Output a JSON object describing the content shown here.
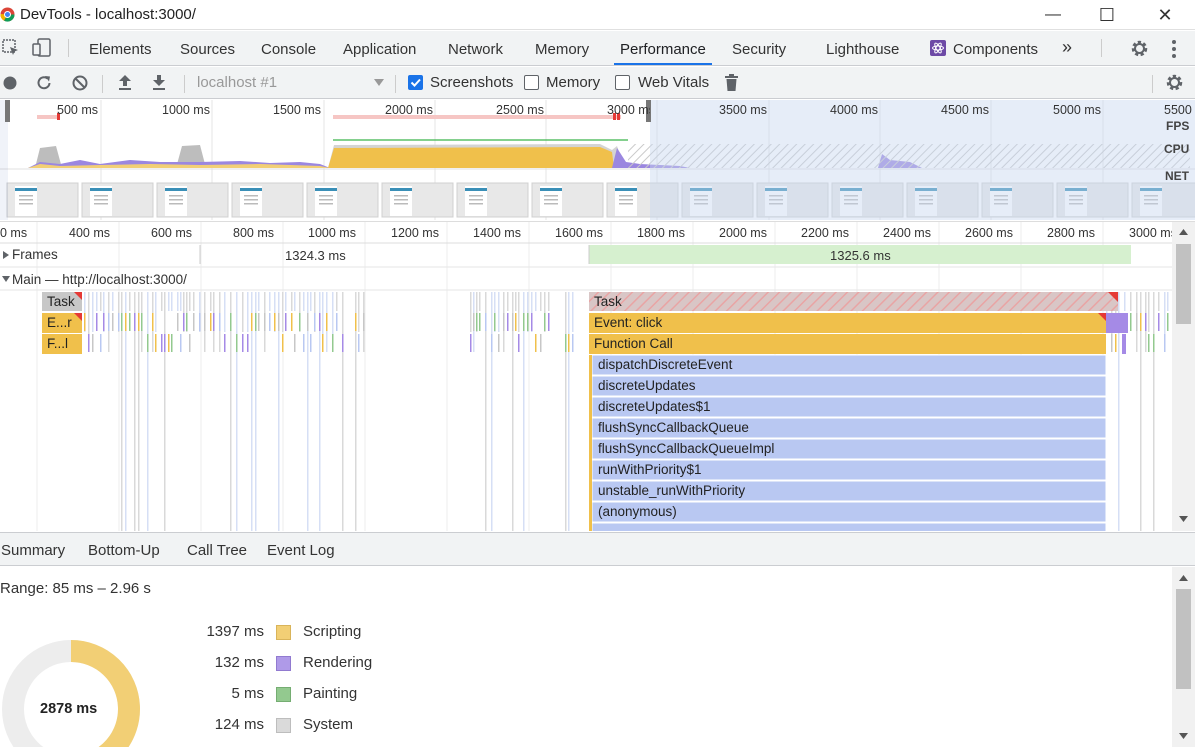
{
  "window": {
    "title": "DevTools - localhost:3000/",
    "minimize_glyph": "—",
    "maximize_glyph": "☐",
    "close_glyph": "✕"
  },
  "tabs": {
    "items": [
      "Elements",
      "Sources",
      "Console",
      "Application",
      "Network",
      "Memory",
      "Performance",
      "Security",
      "Lighthouse",
      "Components"
    ],
    "active": "Performance",
    "more_glyph": "»"
  },
  "toolbar": {
    "recording_select": "localhost #1",
    "screenshots_label": "Screenshots",
    "screenshots_checked": true,
    "memory_label": "Memory",
    "memory_checked": false,
    "webvitals_label": "Web Vitals",
    "webvitals_checked": false
  },
  "overview": {
    "ticks": [
      "500 ms",
      "1000 ms",
      "1500 ms",
      "2000 ms",
      "2500 ms",
      "3000 ms",
      "3500 ms",
      "4000 ms",
      "4500 ms",
      "5000 ms",
      "5500"
    ],
    "lane_labels": {
      "fps": "FPS",
      "cpu": "CPU",
      "net": "NET"
    },
    "selection": {
      "start_ms": 85,
      "end_ms": 2960
    }
  },
  "flame": {
    "ticks": [
      "0 ms",
      "400 ms",
      "600 ms",
      "800 ms",
      "1000 ms",
      "1200 ms",
      "1400 ms",
      "1600 ms",
      "1800 ms",
      "2000 ms",
      "2200 ms",
      "2400 ms",
      "2600 ms",
      "2800 ms",
      "3000 ms"
    ],
    "frames_label": "Frames",
    "frames": [
      "1324.3 ms",
      "1325.6 ms"
    ],
    "main_label": "Main — http://localhost:3000/",
    "left_events": [
      "Task",
      "E...r",
      "F...l"
    ],
    "right_events": [
      "Task",
      "Event: click",
      "Function Call",
      "dispatchDiscreteEvent",
      "discreteUpdates",
      "discreteUpdates$1",
      "flushSyncCallbackQueue",
      "flushSyncCallbackQueueImpl",
      "runWithPriority$1",
      "unstable_runWithPriority",
      "(anonymous)"
    ]
  },
  "drawer": {
    "tabs": [
      "Summary",
      "Bottom-Up",
      "Call Tree",
      "Event Log"
    ],
    "active": "Summary"
  },
  "summary": {
    "range": "Range: 85 ms – 2.96 s",
    "total": "2878 ms",
    "items": [
      {
        "value": "1397 ms",
        "label": "Scripting",
        "color": "#f2cf75"
      },
      {
        "value": "132 ms",
        "label": "Rendering",
        "color": "#af9ae8"
      },
      {
        "value": "5 ms",
        "label": "Painting",
        "color": "#93c98f"
      },
      {
        "value": "124 ms",
        "label": "System",
        "color": "#dadada"
      }
    ]
  },
  "colors": {
    "accent": "#1a73e8",
    "scripting": "#f2cf75",
    "task_yellow": "#f0c04b",
    "js_blue": "#b9c8f2",
    "rendering": "#af9ae8",
    "frames_green": "#d6f0cf"
  }
}
